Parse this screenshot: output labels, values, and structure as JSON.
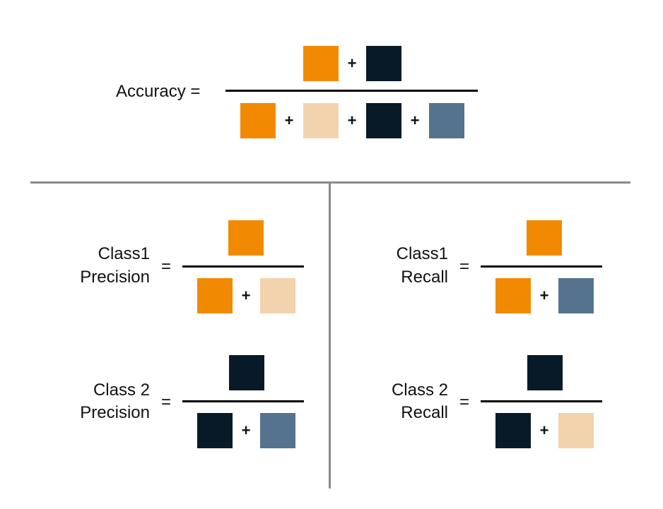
{
  "colors": {
    "class1_correct": "#F18A00",
    "class1_incorrect": "#F2D3AD",
    "class2_correct": "#081A28",
    "class2_incorrect": "#55728E",
    "divider": "#8A8A8A"
  },
  "operator_plus": "+",
  "operator_equals": "=",
  "accuracy": {
    "label": "Accuracy ="
  },
  "class1_precision": {
    "line1": "Class1",
    "line2": "Precision"
  },
  "class1_recall": {
    "line1": "Class1",
    "line2": "Recall"
  },
  "class2_precision": {
    "line1": "Class 2",
    "line2": "Precision"
  },
  "class2_recall": {
    "line1": "Class 2",
    "line2": "Recall"
  }
}
